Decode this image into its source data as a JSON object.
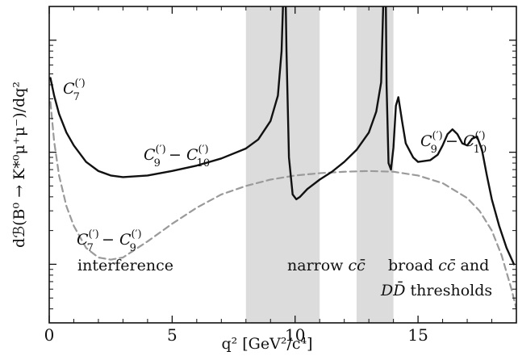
{
  "chart_data": {
    "type": "line",
    "title": "",
    "xlabel": "q² [GeV²/c⁴]",
    "ylabel": "dℬ(B⁰ → K*⁰μ⁺μ⁻)/dq²",
    "xlim": [
      0,
      19
    ],
    "y_scale": "log",
    "y_tick_labels_shown": false,
    "x_ticks": [
      0,
      5,
      10,
      15
    ],
    "x_tick_labels": [
      "0",
      "5",
      "10",
      "15"
    ],
    "shaded_regions": [
      {
        "x": [
          8.0,
          11.0
        ],
        "color": "#dcdcdc"
      },
      {
        "x": [
          12.5,
          14.0
        ],
        "color": "#dcdcdc"
      }
    ],
    "series": [
      {
        "style": "solid",
        "color": "#111111",
        "x": [
          0.05,
          0.2,
          0.4,
          0.7,
          1.0,
          1.5,
          2.0,
          2.5,
          3.0,
          4.0,
          5.0,
          6.0,
          7.0,
          8.0,
          8.5,
          9.0,
          9.3,
          9.45,
          9.55,
          9.6,
          9.65,
          9.75,
          9.9,
          10.05,
          10.2,
          10.5,
          11.0,
          11.5,
          12.0,
          12.5,
          13.0,
          13.3,
          13.5,
          13.62,
          13.68,
          13.72,
          13.8,
          13.9,
          14.0,
          14.1,
          14.2,
          14.35,
          14.5,
          14.8,
          15.0,
          15.5,
          15.8,
          16.0,
          16.2,
          16.4,
          16.6,
          16.8,
          17.0,
          17.2,
          17.4,
          17.6,
          17.8,
          18.0,
          18.3,
          18.6,
          18.9
        ],
        "y": [
          4.6,
          3.2,
          2.2,
          1.5,
          1.15,
          0.82,
          0.68,
          0.62,
          0.6,
          0.62,
          0.68,
          0.76,
          0.88,
          1.08,
          1.3,
          1.9,
          3.2,
          8.0,
          40.0,
          40.0,
          8.0,
          0.9,
          0.42,
          0.38,
          0.4,
          0.47,
          0.57,
          0.67,
          0.82,
          1.05,
          1.5,
          2.3,
          4.2,
          40.0,
          40.0,
          4.0,
          0.8,
          0.7,
          1.1,
          2.6,
          3.1,
          1.9,
          1.2,
          0.9,
          0.82,
          0.85,
          0.95,
          1.15,
          1.45,
          1.6,
          1.45,
          1.2,
          1.15,
          1.32,
          1.38,
          1.05,
          0.62,
          0.38,
          0.22,
          0.14,
          0.1
        ]
      },
      {
        "style": "dashed",
        "color": "#9a9a9a",
        "x": [
          0.05,
          0.2,
          0.4,
          0.7,
          1.0,
          1.5,
          2.0,
          2.5,
          3.0,
          4.0,
          5.0,
          6.0,
          7.0,
          8.0,
          9.0,
          10.0,
          11.0,
          12.0,
          13.0,
          14.0,
          15.0,
          16.0,
          17.0,
          17.5,
          18.0,
          18.4,
          18.8,
          19.0
        ],
        "y": [
          2.8,
          1.25,
          0.62,
          0.33,
          0.22,
          0.14,
          0.115,
          0.11,
          0.115,
          0.16,
          0.23,
          0.32,
          0.42,
          0.5,
          0.57,
          0.62,
          0.65,
          0.67,
          0.68,
          0.67,
          0.62,
          0.53,
          0.39,
          0.3,
          0.2,
          0.12,
          0.06,
          0.04
        ]
      }
    ],
    "annotations": {
      "c7": {
        "base": "C",
        "sub": "7",
        "sup": "(′)"
      },
      "c9c10_left": {
        "b1": "C",
        "sub1": "9",
        "sup1": "(′)",
        "minus": " − ",
        "b2": "C",
        "sub2": "10",
        "sup2": "(′)"
      },
      "c9c10_right": {
        "b1": "C",
        "sub1": "9",
        "sup1": "(′)",
        "minus": " − ",
        "b2": "C",
        "sub2": "10",
        "sup2": "(′)"
      },
      "c7c9": {
        "b1": "C",
        "sub1": "7",
        "sup1": "(′)",
        "minus": " − ",
        "b2": "C",
        "sub2": "9",
        "sup2": "(′)"
      },
      "interference": "interference",
      "narrow_prefix": "narrow ",
      "narrow_cc": "cc̄",
      "broad_prefix": "broad ",
      "broad_cc": "cc̄",
      "broad_suffix": " and",
      "ddbar": "DD̄",
      "thresholds": " thresholds"
    }
  }
}
